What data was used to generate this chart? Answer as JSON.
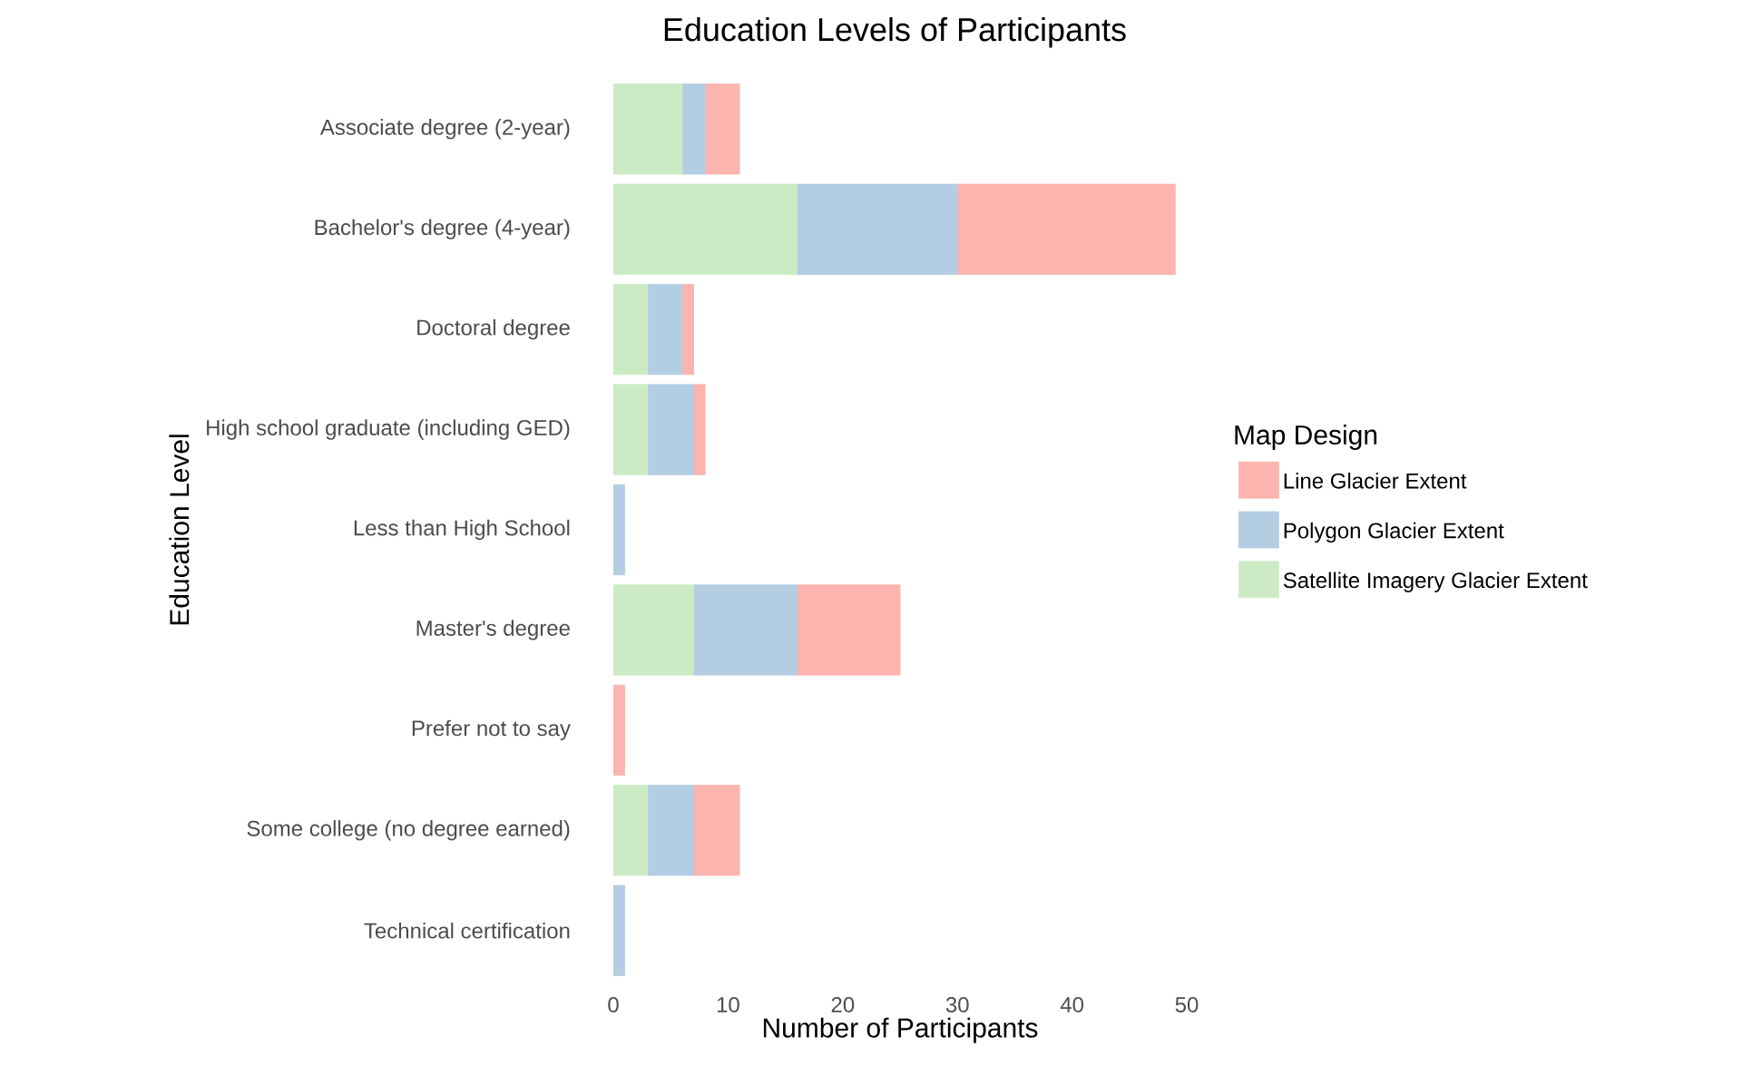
{
  "chart_data": {
    "type": "bar",
    "orientation": "horizontal",
    "stacked": true,
    "title": "Education Levels of Participants",
    "xlabel": "Number of Participants",
    "ylabel": "Education Level",
    "legend_title": "Map Design",
    "legend": "right",
    "grid": false,
    "categories": [
      "Associate degree (2-year)",
      "Bachelor's degree (4-year)",
      "Doctoral degree",
      "High school graduate (including GED)",
      "Less than High School",
      "Master's degree",
      "Prefer not to say",
      "Some college (no degree earned)",
      "Technical certification"
    ],
    "xlim": [
      0,
      50
    ],
    "xticks": [
      0,
      10,
      20,
      30,
      40,
      50
    ],
    "series": [
      {
        "name": "Satellite Imagery Glacier Extent",
        "color": "#ccebc5",
        "values": [
          6,
          16,
          3,
          3,
          0,
          7,
          0,
          3,
          0
        ]
      },
      {
        "name": "Polygon Glacier Extent",
        "color": "#b3cde3",
        "values": [
          2,
          14,
          3,
          4,
          1,
          9,
          0,
          4,
          1
        ]
      },
      {
        "name": "Line Glacier Extent",
        "color": "#fbb4ae",
        "values": [
          3,
          19,
          1,
          1,
          0,
          9,
          1,
          4,
          0
        ]
      }
    ]
  }
}
